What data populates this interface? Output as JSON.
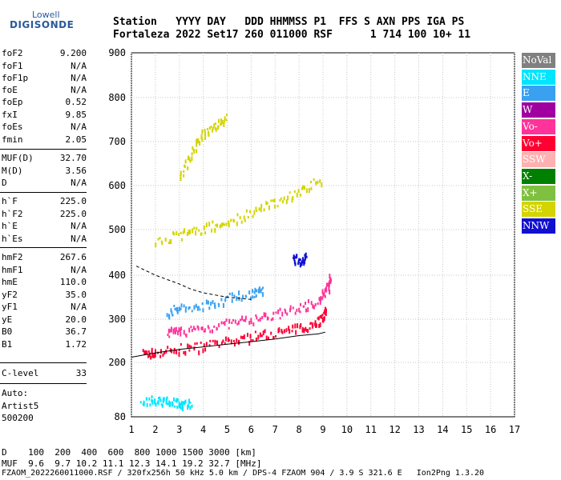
{
  "logo": {
    "line1": "Lowell",
    "line2": "DIGISONDE"
  },
  "header": {
    "line1": "Station   YYYY DAY   DDD HHMMSS P1  FFS S AXN PPS IGA PS",
    "line2": "Fortaleza 2022 Set17 260 011000 RSF      1 714 100 10+ 11"
  },
  "params": [
    {
      "name": "foF2",
      "value": "9.200"
    },
    {
      "name": "foF1",
      "value": "N/A"
    },
    {
      "name": "foF1p",
      "value": "N/A"
    },
    {
      "name": "foE",
      "value": "N/A"
    },
    {
      "name": "foEp",
      "value": "0.52"
    },
    {
      "name": "fxI",
      "value": "9.85"
    },
    {
      "name": "foEs",
      "value": "N/A"
    },
    {
      "name": "fmin",
      "value": "2.05"
    },
    {
      "name": "MUF(D)",
      "value": "32.70"
    },
    {
      "name": "M(D)",
      "value": "3.56"
    },
    {
      "name": "D",
      "value": "N/A"
    },
    {
      "name": "h`F",
      "value": "225.0"
    },
    {
      "name": "h`F2",
      "value": "225.0"
    },
    {
      "name": "h`E",
      "value": "N/A"
    },
    {
      "name": "h`Es",
      "value": "N/A"
    },
    {
      "name": "hmF2",
      "value": "267.6"
    },
    {
      "name": "hmF1",
      "value": "N/A"
    },
    {
      "name": "hmE",
      "value": "110.0"
    },
    {
      "name": "yF2",
      "value": "35.0"
    },
    {
      "name": "yF1",
      "value": "N/A"
    },
    {
      "name": "yE",
      "value": "20.0"
    },
    {
      "name": "B0",
      "value": "36.7"
    },
    {
      "name": "B1",
      "value": "1.72"
    },
    {
      "name": "C-level",
      "value": "33"
    }
  ],
  "autoscaling": [
    "Auto:",
    "Artist5",
    "500200"
  ],
  "legend": [
    {
      "label": "NoVal",
      "color": "#808080"
    },
    {
      "label": "NNE",
      "color": "#00e5ff"
    },
    {
      "label": "E",
      "color": "#3aa0f0"
    },
    {
      "label": "W",
      "color": "#a000a0"
    },
    {
      "label": "Vo-",
      "color": "#ff3399"
    },
    {
      "label": "Vo+",
      "color": "#ff0033"
    },
    {
      "label": "SSW",
      "color": "#ffb0b0"
    },
    {
      "label": "X-",
      "color": "#008000"
    },
    {
      "label": "X+",
      "color": "#80c040"
    },
    {
      "label": "SSE",
      "color": "#d4d400"
    },
    {
      "label": "NNW",
      "color": "#1010d0"
    }
  ],
  "footer": {
    "line1": "D    100  200  400  600  800 1000 1500 3000 [km]",
    "line2": "MUF  9.6  9.7 10.2 11.1 12.3 14.1 19.2 32.7 [MHz]",
    "line3": "FZAOM_2022260011000.RSF / 320fx256h 50 kHz 5.0 km / DPS-4 FZAOM 904 / 3.9 S 321.6 E   Ion2Png 1.3.20"
  },
  "chart_data": {
    "type": "scatter",
    "x_ticks": [
      1,
      2,
      3,
      4,
      5,
      6,
      7,
      8,
      9,
      10,
      11,
      12,
      13,
      14,
      15,
      16,
      17
    ],
    "y_ticks": [
      80,
      200,
      300,
      400,
      500,
      600,
      700,
      800,
      900
    ],
    "xlim": [
      1,
      17
    ],
    "ylim": [
      80,
      900
    ],
    "grid": true,
    "legend_position": "right",
    "traces": [
      {
        "name": "ordinary-trace",
        "color": "#ff0033",
        "points": [
          [
            1.5,
            222
          ],
          [
            2,
            226
          ],
          [
            3,
            233
          ],
          [
            4,
            240
          ],
          [
            5,
            250
          ],
          [
            6,
            262
          ],
          [
            7,
            272
          ],
          [
            8,
            282
          ],
          [
            8.6,
            292
          ],
          [
            9,
            308
          ],
          [
            9.1,
            325
          ]
        ]
      },
      {
        "name": "extraordinary-trace",
        "color": "#ff3399",
        "points": [
          [
            2.5,
            270
          ],
          [
            3,
            275
          ],
          [
            4,
            282
          ],
          [
            5,
            292
          ],
          [
            6,
            302
          ],
          [
            7,
            312
          ],
          [
            8,
            328
          ],
          [
            8.8,
            345
          ],
          [
            9.2,
            375
          ],
          [
            9.3,
            400
          ]
        ]
      },
      {
        "name": "spread-high",
        "color": "#3aa0f0",
        "points": [
          [
            2.5,
            320
          ],
          [
            3,
            325
          ],
          [
            4,
            335
          ],
          [
            5,
            350
          ],
          [
            6,
            362
          ],
          [
            6.5,
            370
          ]
        ]
      },
      {
        "name": "oblique-band",
        "color": "#d4d400",
        "points": [
          [
            2,
            475
          ],
          [
            3,
            490
          ],
          [
            4,
            505
          ],
          [
            5,
            520
          ],
          [
            6,
            540
          ],
          [
            7,
            565
          ],
          [
            8,
            590
          ],
          [
            9,
            620
          ]
        ]
      },
      {
        "name": "spread-upper",
        "color": "#d4d400",
        "points": [
          [
            3,
            620
          ],
          [
            3.5,
            680
          ],
          [
            4,
            720
          ],
          [
            4.5,
            740
          ],
          [
            5,
            760
          ]
        ]
      },
      {
        "name": "nnw-patch",
        "color": "#1010d0",
        "points": [
          [
            7.7,
            435
          ],
          [
            8,
            438
          ],
          [
            8.3,
            440
          ]
        ]
      },
      {
        "name": "low-echo",
        "color": "#00e5ff",
        "points": [
          [
            1.4,
            115
          ],
          [
            2,
            118
          ],
          [
            2.5,
            115
          ],
          [
            3,
            112
          ],
          [
            3.5,
            115
          ]
        ]
      }
    ],
    "profile_curve": [
      [
        1.0,
        212
      ],
      [
        2,
        222
      ],
      [
        3,
        230
      ],
      [
        4,
        236
      ],
      [
        5,
        242
      ],
      [
        6,
        248
      ],
      [
        7,
        254
      ],
      [
        8,
        262
      ],
      [
        8.8,
        266
      ],
      [
        9.1,
        270
      ]
    ],
    "dashed_curve": [
      [
        1.2,
        420
      ],
      [
        2,
        400
      ],
      [
        3,
        380
      ],
      [
        3.5,
        368
      ],
      [
        4,
        360
      ],
      [
        5,
        350
      ],
      [
        6,
        345
      ]
    ]
  }
}
